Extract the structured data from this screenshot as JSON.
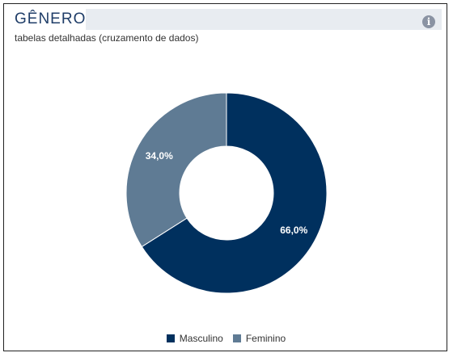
{
  "header": {
    "title": "GÊNERO",
    "subtitle": "tabelas detalhadas (cruzamento de dados)",
    "info_icon": "info-icon"
  },
  "colors": {
    "title": "#1f3d68",
    "title_bar": "#e8ecf1"
  },
  "chart_data": {
    "type": "pie",
    "donut": true,
    "title": "",
    "categories": [
      "Masculino",
      "Feminino"
    ],
    "values": [
      66.0,
      34.0
    ],
    "labels": [
      "66,0%",
      "34,0%"
    ],
    "colors": [
      "#00305e",
      "#5f7b94"
    ],
    "legend": "bottom-center"
  }
}
